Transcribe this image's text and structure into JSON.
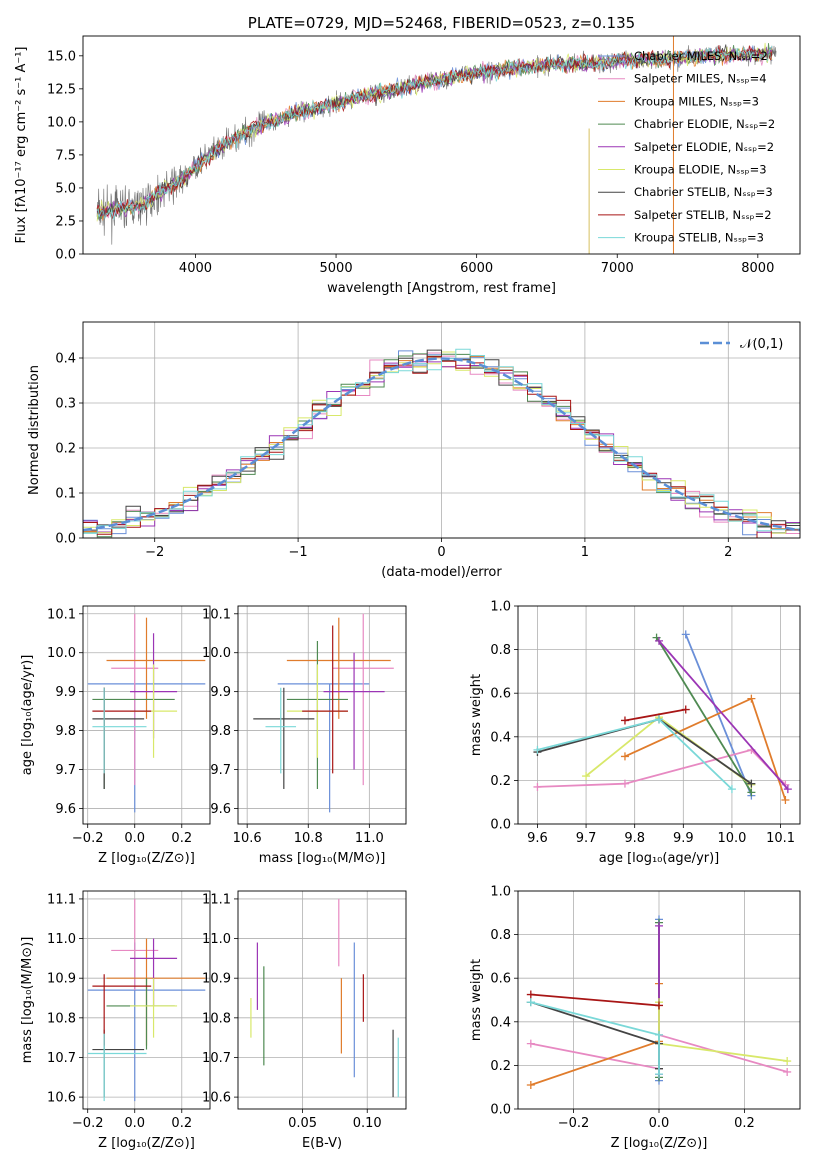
{
  "palette": [
    "#6a8fd8",
    "#e789c2",
    "#e07c2c",
    "#4f8a52",
    "#9b35b5",
    "#d8e86a",
    "#444444",
    "#a81515",
    "#7ad8d8"
  ],
  "chart_data": [
    {
      "id": "spectrum",
      "type": "line",
      "title": "PLATE=0729, MJD=52468, FIBERID=0523, z=0.135",
      "xlabel": "wavelength [Angstrom, rest frame]",
      "ylabel": "Flux [fλ10⁻¹⁷ erg cm⁻² s⁻¹ A⁻¹]",
      "xlim": [
        3200,
        8300
      ],
      "ylim": [
        0,
        16.5
      ],
      "xticks": [
        4000,
        5000,
        6000,
        7000,
        8000
      ],
      "yticks": [
        0.0,
        2.5,
        5.0,
        7.5,
        10.0,
        12.5,
        15.0
      ],
      "legend_position": "top-right",
      "series": [
        {
          "name": "Chabrier MILES, Nₛₛₚ=2"
        },
        {
          "name": "Salpeter MILES, Nₛₛₚ=4"
        },
        {
          "name": "Kroupa MILES, Nₛₛₚ=3"
        },
        {
          "name": "Chabrier ELODIE, Nₛₛₚ=2"
        },
        {
          "name": "Salpeter ELODIE, Nₛₛₚ=2"
        },
        {
          "name": "Kroupa ELODIE, Nₛₛₚ=3"
        },
        {
          "name": "Chabrier STELIB, Nₛₛₚ=3"
        },
        {
          "name": "Salpeter STELIB, Nₛₛₚ=2"
        },
        {
          "name": "Kroupa STELIB, Nₛₛₚ=3"
        }
      ],
      "continuum": {
        "x": [
          3300,
          3500,
          3600,
          3700,
          3800,
          3900,
          4000,
          4100,
          4200,
          4300,
          4400,
          4500,
          4600,
          4700,
          4800,
          4900,
          5000,
          5200,
          5400,
          5600,
          5800,
          6000,
          6200,
          6400,
          6600,
          6800,
          7000,
          7200,
          7400,
          7600,
          7800,
          8000,
          8100
        ],
        "y": [
          3.2,
          3.5,
          3.6,
          4.3,
          5.0,
          5.6,
          6.6,
          7.5,
          8.2,
          8.9,
          9.4,
          9.9,
          10.2,
          10.6,
          10.9,
          11.1,
          11.4,
          12.0,
          12.4,
          12.9,
          13.3,
          13.7,
          14.0,
          14.2,
          14.4,
          14.4,
          14.6,
          14.7,
          14.8,
          15.0,
          15.1,
          15.1,
          15.2
        ]
      }
    },
    {
      "id": "residuals",
      "type": "line",
      "xlabel": "(data-model)/error",
      "ylabel": "Normed distribution",
      "xlim": [
        -2.5,
        2.5
      ],
      "ylim": [
        0,
        0.48
      ],
      "xticks": [
        -2,
        -1,
        0,
        1,
        2
      ],
      "yticks": [
        0.0,
        0.1,
        0.2,
        0.3,
        0.4
      ],
      "grid": true,
      "legend_position": "top-right",
      "reference": {
        "name": "𝒩(0,1)",
        "mean": 0,
        "sigma": 1
      },
      "bins": {
        "start": -2.5,
        "width": 0.1,
        "count": 50
      }
    },
    {
      "id": "age-vs-Z",
      "type": "errorbar",
      "xlabel": "Z [log₁₀(Z/Z⊙)]",
      "ylabel": "age  [log₁₀(age/yr)]",
      "xlim": [
        -0.22,
        0.32
      ],
      "ylim": [
        9.56,
        10.12
      ],
      "xticks": [
        -0.2,
        0.0,
        0.2
      ],
      "xticklabels": [
        "−0.2",
        "0.0",
        "0.2"
      ],
      "yticks": [
        9.6,
        9.7,
        9.8,
        9.9,
        10.0,
        10.1
      ],
      "grid": true,
      "points": [
        {
          "x": 0.0,
          "xerr": [
            0.2,
            0.3
          ],
          "y": 9.92,
          "yerr": [
            0.33,
            0.0
          ]
        },
        {
          "x": 0.0,
          "xerr": [
            0.1,
            0.1
          ],
          "y": 9.96,
          "yerr": [
            0.3,
            0.14
          ]
        },
        {
          "x": 0.05,
          "xerr": [
            0.17,
            0.25
          ],
          "y": 9.98,
          "yerr": [
            0.15,
            0.11
          ]
        },
        {
          "x": -0.13,
          "xerr": [
            0.05,
            0.3
          ],
          "y": 9.88,
          "yerr": [
            0.23,
            0.03
          ]
        },
        {
          "x": 0.08,
          "xerr": [
            0.1,
            0.1
          ],
          "y": 9.9,
          "yerr": [
            0.12,
            0.15
          ]
        },
        {
          "x": 0.08,
          "xerr": [
            0.1,
            0.1
          ],
          "y": 9.85,
          "yerr": [
            0.12,
            0.12
          ]
        },
        {
          "x": -0.13,
          "xerr": [
            0.05,
            0.17
          ],
          "y": 9.83,
          "yerr": [
            0.18,
            0.08
          ]
        },
        {
          "x": -0.13,
          "xerr": [
            0.05,
            0.2
          ],
          "y": 9.85,
          "yerr": [
            0.16,
            0.06
          ]
        },
        {
          "x": -0.13,
          "xerr": [
            0.05,
            0.18
          ],
          "y": 9.81,
          "yerr": [
            0.12,
            0.1
          ]
        }
      ]
    },
    {
      "id": "age-vs-mass",
      "type": "errorbar",
      "xlabel": "mass [log₁₀(M/M⊙)]",
      "ylabel": "",
      "xlim": [
        10.57,
        11.12
      ],
      "ylim": [
        9.56,
        10.12
      ],
      "xticks": [
        10.6,
        10.8,
        11.0
      ],
      "yticks": [
        9.6,
        9.7,
        9.8,
        9.9,
        10.0,
        10.1
      ],
      "grid": true,
      "points": [
        {
          "x": 10.87,
          "xerr": [
            0.17,
            0.13
          ],
          "y": 9.92,
          "yerr": [
            0.33,
            0.0
          ]
        },
        {
          "x": 10.98,
          "xerr": [
            0.1,
            0.1
          ],
          "y": 9.96,
          "yerr": [
            0.3,
            0.14
          ]
        },
        {
          "x": 10.9,
          "xerr": [
            0.17,
            0.17
          ],
          "y": 9.98,
          "yerr": [
            0.15,
            0.11
          ]
        },
        {
          "x": 10.83,
          "xerr": [
            0.1,
            0.1
          ],
          "y": 9.88,
          "yerr": [
            0.23,
            0.15
          ]
        },
        {
          "x": 10.95,
          "xerr": [
            0.1,
            0.1
          ],
          "y": 9.9,
          "yerr": [
            0.2,
            0.1
          ]
        },
        {
          "x": 10.83,
          "xerr": [
            0.1,
            0.1
          ],
          "y": 9.85,
          "yerr": [
            0.12,
            0.12
          ]
        },
        {
          "x": 10.72,
          "xerr": [
            0.1,
            0.1
          ],
          "y": 9.83,
          "yerr": [
            0.18,
            0.08
          ]
        },
        {
          "x": 10.88,
          "xerr": [
            0.1,
            0.05
          ],
          "y": 9.85,
          "yerr": [
            0.16,
            0.22
          ]
        },
        {
          "x": 10.71,
          "xerr": [
            0.05,
            0.05
          ],
          "y": 9.81,
          "yerr": [
            0.12,
            0.1
          ]
        }
      ]
    },
    {
      "id": "massweight-vs-age",
      "type": "line",
      "xlabel": "age  [log₁₀(age/yr)]",
      "ylabel": "mass weight",
      "xlim": [
        9.56,
        10.14
      ],
      "ylim": [
        0,
        1.0
      ],
      "xticks": [
        9.6,
        9.7,
        9.8,
        9.9,
        10.0,
        10.1
      ],
      "yticks": [
        0.0,
        0.2,
        0.4,
        0.6,
        0.8,
        1.0
      ],
      "grid": true,
      "series": [
        {
          "x": [
            9.905,
            10.04
          ],
          "y": [
            0.87,
            0.13
          ]
        },
        {
          "x": [
            9.6,
            9.78,
            10.04,
            10.11
          ],
          "y": [
            0.17,
            0.185,
            0.34,
            0.18
          ]
        },
        {
          "x": [
            9.78,
            10.04,
            10.11
          ],
          "y": [
            0.31,
            0.575,
            0.11
          ]
        },
        {
          "x": [
            9.845,
            10.04
          ],
          "y": [
            0.855,
            0.145
          ]
        },
        {
          "x": [
            9.85,
            10.115
          ],
          "y": [
            0.84,
            0.16
          ]
        },
        {
          "x": [
            9.7,
            9.85,
            10.04
          ],
          "y": [
            0.22,
            0.49,
            0.18
          ]
        },
        {
          "x": [
            9.6,
            9.85,
            10.04
          ],
          "y": [
            0.33,
            0.48,
            0.185
          ]
        },
        {
          "x": [
            9.78,
            9.905
          ],
          "y": [
            0.475,
            0.525
          ]
        },
        {
          "x": [
            9.6,
            9.85,
            10.0
          ],
          "y": [
            0.34,
            0.48,
            0.16
          ]
        }
      ]
    },
    {
      "id": "mass-vs-Z",
      "type": "errorbar",
      "xlabel": "Z [log₁₀(Z/Z⊙)]",
      "ylabel": "mass [log₁₀(M/M⊙)]",
      "xlim": [
        -0.22,
        0.32
      ],
      "ylim": [
        10.57,
        11.12
      ],
      "xticks": [
        -0.2,
        0.0,
        0.2
      ],
      "xticklabels": [
        "−0.2",
        "0.0",
        "0.2"
      ],
      "yticks": [
        10.6,
        10.7,
        10.8,
        10.9,
        11.0,
        11.1
      ],
      "grid": true,
      "points": [
        {
          "x": 0.0,
          "xerr": [
            0.2,
            0.3
          ],
          "y": 10.87,
          "yerr": [
            0.28,
            0.12
          ]
        },
        {
          "x": 0.0,
          "xerr": [
            0.1,
            0.1
          ],
          "y": 10.97,
          "yerr": [
            0.1,
            0.13
          ]
        },
        {
          "x": 0.05,
          "xerr": [
            0.17,
            0.25
          ],
          "y": 10.9,
          "yerr": [
            0.17,
            0.1
          ]
        },
        {
          "x": 0.05,
          "xerr": [
            0.17,
            0.12
          ],
          "y": 10.83,
          "yerr": [
            0.11,
            0.07
          ]
        },
        {
          "x": 0.08,
          "xerr": [
            0.1,
            0.1
          ],
          "y": 10.95,
          "yerr": [
            0.12,
            0.05
          ]
        },
        {
          "x": 0.08,
          "xerr": [
            0.1,
            0.1
          ],
          "y": 10.83,
          "yerr": [
            0.08,
            0.07
          ]
        },
        {
          "x": -0.13,
          "xerr": [
            0.05,
            0.17
          ],
          "y": 10.72,
          "yerr": [
            0.12,
            0.05
          ]
        },
        {
          "x": -0.13,
          "xerr": [
            0.05,
            0.2
          ],
          "y": 10.88,
          "yerr": [
            0.15,
            0.03
          ]
        },
        {
          "x": -0.13,
          "xerr": [
            0.07,
            0.18
          ],
          "y": 10.71,
          "yerr": [
            0.12,
            0.05
          ]
        }
      ]
    },
    {
      "id": "mass-vs-EBV",
      "type": "errorbar",
      "xlabel": "E(B-V)",
      "ylabel": "",
      "xlim": [
        0.0,
        0.13
      ],
      "ylim": [
        10.57,
        11.12
      ],
      "xticks": [
        0.05,
        0.1
      ],
      "xticklabels": [
        "0.05",
        "0.10"
      ],
      "yticks": [
        10.6,
        10.7,
        10.8,
        10.9,
        11.0,
        11.1
      ],
      "grid": true,
      "points": [
        {
          "x": 0.09,
          "xerr": [
            0,
            0
          ],
          "y": 10.87,
          "yerr": [
            0.22,
            0.12
          ]
        },
        {
          "x": 0.078,
          "xerr": [
            0,
            0
          ],
          "y": 11.0,
          "yerr": [
            0.07,
            0.1
          ]
        },
        {
          "x": 0.08,
          "xerr": [
            0,
            0
          ],
          "y": 10.85,
          "yerr": [
            0.14,
            0.05
          ]
        },
        {
          "x": 0.02,
          "xerr": [
            0,
            0
          ],
          "y": 10.84,
          "yerr": [
            0.16,
            0.09
          ]
        },
        {
          "x": 0.015,
          "xerr": [
            0,
            0
          ],
          "y": 10.9,
          "yerr": [
            0.08,
            0.09
          ]
        },
        {
          "x": 0.01,
          "xerr": [
            0,
            0
          ],
          "y": 10.8,
          "yerr": [
            0.05,
            0.05
          ]
        },
        {
          "x": 0.12,
          "xerr": [
            0,
            0
          ],
          "y": 10.7,
          "yerr": [
            0.1,
            0.07
          ]
        },
        {
          "x": 0.097,
          "xerr": [
            0,
            0
          ],
          "y": 10.84,
          "yerr": [
            0.05,
            0.07
          ]
        },
        {
          "x": 0.124,
          "xerr": [
            0,
            0
          ],
          "y": 10.68,
          "yerr": [
            0.08,
            0.07
          ]
        }
      ]
    },
    {
      "id": "massweight-vs-Z",
      "type": "line",
      "xlabel": "Z [log₁₀(Z/Z⊙)]",
      "ylabel": "mass weight",
      "xlim": [
        -0.33,
        0.33
      ],
      "ylim": [
        0,
        1.0
      ],
      "xticks": [
        -0.2,
        0.0,
        0.2
      ],
      "xticklabels": [
        "−0.2",
        "0.0",
        "0.2"
      ],
      "yticks": [
        0.0,
        0.2,
        0.4,
        0.6,
        0.8,
        1.0
      ],
      "grid": true,
      "series": [
        {
          "x": [
            0.0,
            0.0
          ],
          "y": [
            0.87,
            0.13
          ]
        },
        {
          "x": [
            -0.3,
            0.0,
            0.0,
            0.3
          ],
          "y": [
            0.3,
            0.185,
            0.34,
            0.17
          ]
        },
        {
          "x": [
            -0.3,
            0.0,
            0.0
          ],
          "y": [
            0.11,
            0.31,
            0.575
          ]
        },
        {
          "x": [
            0.0,
            0.0
          ],
          "y": [
            0.855,
            0.145
          ]
        },
        {
          "x": [
            0.0,
            0.0
          ],
          "y": [
            0.84,
            0.16
          ]
        },
        {
          "x": [
            0.0,
            0.0,
            0.3
          ],
          "y": [
            0.49,
            0.3,
            0.22
          ]
        },
        {
          "x": [
            -0.3,
            0.0,
            0.0
          ],
          "y": [
            0.49,
            0.3,
            0.185
          ]
        },
        {
          "x": [
            -0.3,
            0.0
          ],
          "y": [
            0.525,
            0.475
          ]
        },
        {
          "x": [
            -0.3,
            0.0,
            0.0
          ],
          "y": [
            0.49,
            0.34,
            0.16
          ]
        }
      ]
    }
  ]
}
